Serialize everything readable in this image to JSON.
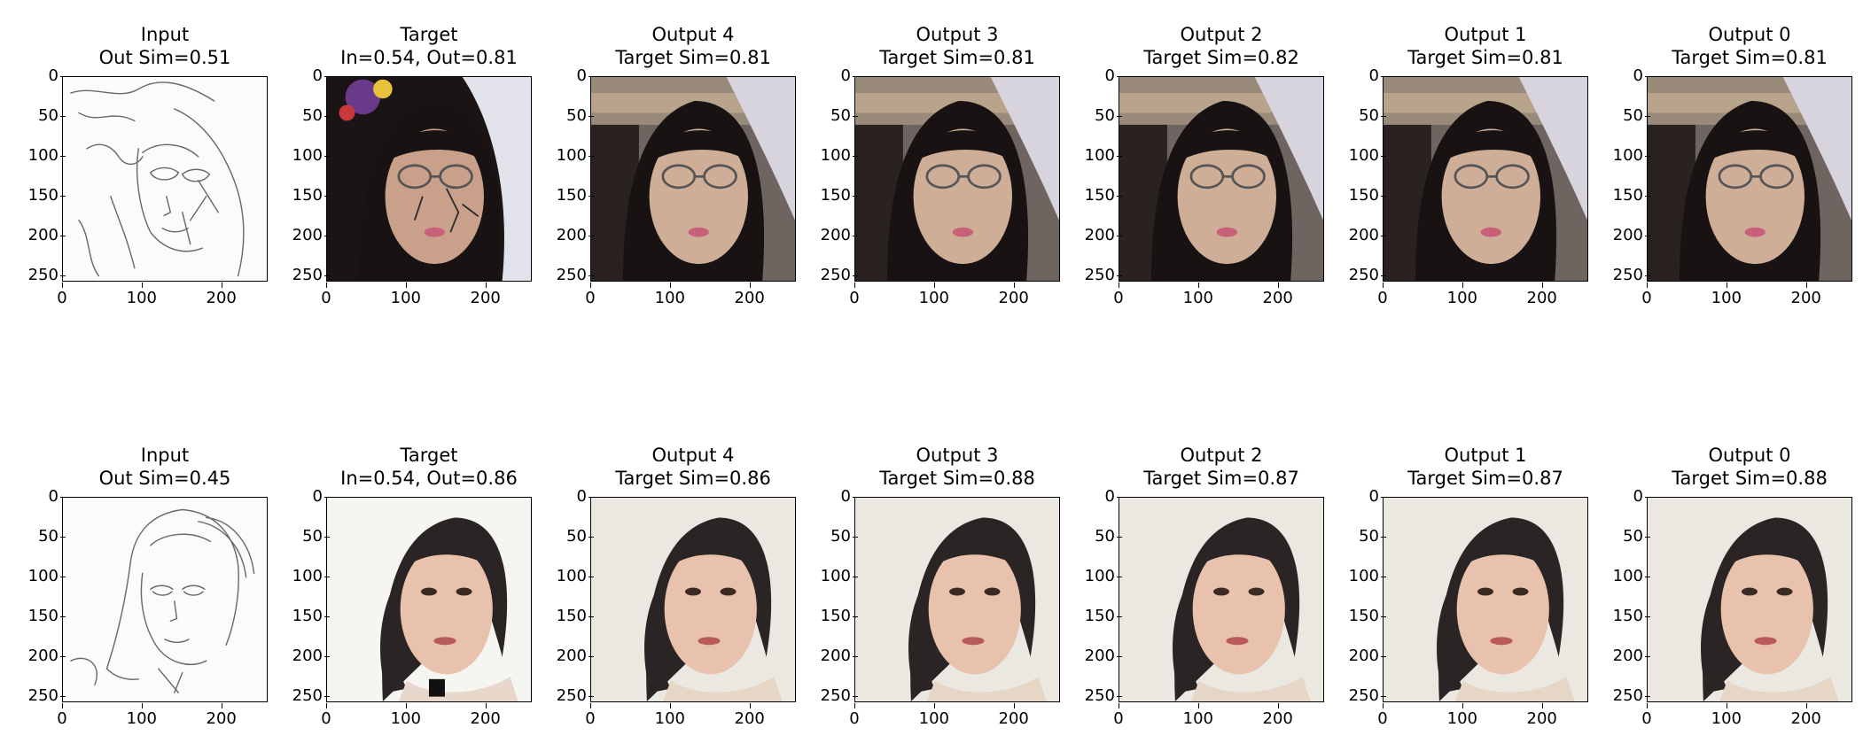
{
  "figure": {
    "rows": [
      {
        "panels": [
          {
            "line1": "Input",
            "line2": "Out Sim=0.51",
            "kind": "sketch",
            "scene": "a"
          },
          {
            "line1": "Target",
            "line2": "In=0.54, Out=0.81",
            "kind": "photo",
            "scene": "a"
          },
          {
            "line1": "Output 4",
            "line2": "Target Sim=0.81",
            "kind": "gen",
            "scene": "a"
          },
          {
            "line1": "Output 3",
            "line2": "Target Sim=0.81",
            "kind": "gen",
            "scene": "a"
          },
          {
            "line1": "Output 2",
            "line2": "Target Sim=0.82",
            "kind": "gen",
            "scene": "a"
          },
          {
            "line1": "Output 1",
            "line2": "Target Sim=0.81",
            "kind": "gen",
            "scene": "a"
          },
          {
            "line1": "Output 0",
            "line2": "Target Sim=0.81",
            "kind": "gen",
            "scene": "a"
          }
        ]
      },
      {
        "panels": [
          {
            "line1": "Input",
            "line2": "Out Sim=0.45",
            "kind": "sketch",
            "scene": "b"
          },
          {
            "line1": "Target",
            "line2": "In=0.54, Out=0.86",
            "kind": "photo",
            "scene": "b"
          },
          {
            "line1": "Output 4",
            "line2": "Target Sim=0.86",
            "kind": "gen",
            "scene": "b"
          },
          {
            "line1": "Output 3",
            "line2": "Target Sim=0.88",
            "kind": "gen",
            "scene": "b"
          },
          {
            "line1": "Output 2",
            "line2": "Target Sim=0.87",
            "kind": "gen",
            "scene": "b"
          },
          {
            "line1": "Output 1",
            "line2": "Target Sim=0.87",
            "kind": "gen",
            "scene": "b"
          },
          {
            "line1": "Output 0",
            "line2": "Target Sim=0.88",
            "kind": "gen",
            "scene": "b"
          }
        ]
      }
    ],
    "yticks": [
      "0",
      "50",
      "100",
      "150",
      "200",
      "250"
    ],
    "xticks": [
      "0",
      "100",
      "200"
    ],
    "axis_max": 256
  }
}
